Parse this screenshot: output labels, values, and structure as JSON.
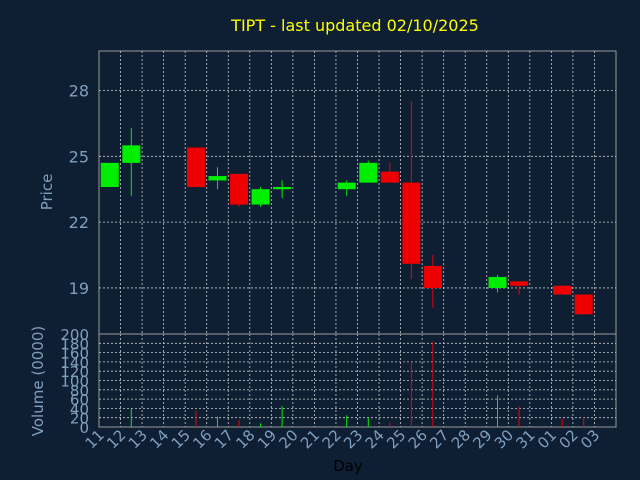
{
  "chart_data": {
    "type": "candlestick",
    "title": "TIPT - last updated 02/10/2025",
    "xlabel": "Day",
    "price_panel": {
      "ylabel": "Price",
      "ylim": [
        16.9,
        29.8
      ],
      "yticks": [
        19,
        22,
        25,
        28
      ],
      "grid": true
    },
    "volume_panel": {
      "ylabel": "Volume (0000)",
      "ylim": [
        0,
        200
      ],
      "yticks": [
        0,
        20,
        40,
        60,
        80,
        100,
        120,
        140,
        160,
        180,
        200
      ],
      "grid": true
    },
    "x_ticks": [
      "11",
      "12",
      "13",
      "14",
      "15",
      "16",
      "17",
      "18",
      "19",
      "20",
      "21",
      "22",
      "23",
      "24",
      "25",
      "26",
      "27",
      "28",
      "29",
      "30",
      "31",
      "01",
      "02",
      "03"
    ],
    "candles": [
      {
        "day": "11",
        "open": 23.6,
        "high": 24.7,
        "low": 23.6,
        "close": 24.7,
        "volume": 0
      },
      {
        "day": "12",
        "open": 24.7,
        "high": 26.3,
        "low": 23.2,
        "close": 25.5,
        "volume": 40
      },
      {
        "day": "15",
        "open": 25.4,
        "high": 25.4,
        "low": 23.6,
        "close": 23.6,
        "volume": 35
      },
      {
        "day": "16",
        "open": 23.9,
        "high": 24.5,
        "low": 23.5,
        "close": 24.1,
        "volume": 22
      },
      {
        "day": "17",
        "open": 24.2,
        "high": 24.2,
        "low": 22.7,
        "close": 22.8,
        "volume": 15
      },
      {
        "day": "18",
        "open": 22.8,
        "high": 23.6,
        "low": 22.7,
        "close": 23.5,
        "volume": 8
      },
      {
        "day": "19",
        "open": 23.5,
        "high": 23.9,
        "low": 23.1,
        "close": 23.6,
        "volume": 45
      },
      {
        "day": "22",
        "open": 23.5,
        "high": 23.9,
        "low": 23.2,
        "close": 23.8,
        "volume": 25
      },
      {
        "day": "23",
        "open": 23.8,
        "high": 24.8,
        "low": 23.8,
        "close": 24.7,
        "volume": 20
      },
      {
        "day": "24",
        "open": 24.3,
        "high": 24.7,
        "low": 23.8,
        "close": 23.8,
        "volume": 10
      },
      {
        "day": "25",
        "open": 23.8,
        "high": 27.5,
        "low": 19.4,
        "close": 20.1,
        "volume": 140
      },
      {
        "day": "26",
        "open": 20.0,
        "high": 20.5,
        "low": 18.1,
        "close": 19.0,
        "volume": 183
      },
      {
        "day": "29",
        "open": 19.0,
        "high": 19.6,
        "low": 18.8,
        "close": 19.5,
        "volume": 68
      },
      {
        "day": "30",
        "open": 19.3,
        "high": 19.3,
        "low": 18.7,
        "close": 19.1,
        "volume": 45
      },
      {
        "day": "01",
        "open": 19.1,
        "high": 19.1,
        "low": 18.7,
        "close": 18.7,
        "volume": 18
      },
      {
        "day": "02",
        "open": 18.7,
        "high": 18.7,
        "low": 17.8,
        "close": 17.8,
        "volume": 22
      }
    ],
    "colors": {
      "background": "#0f1f33",
      "axes": "#999999",
      "grid": "#c8c8c8",
      "up": "#00ee00",
      "down": "#ee0000",
      "title": "#ffff00",
      "label": "#7f9fbf",
      "tick": "#7f9fbf",
      "xlabel": "#000000"
    }
  }
}
